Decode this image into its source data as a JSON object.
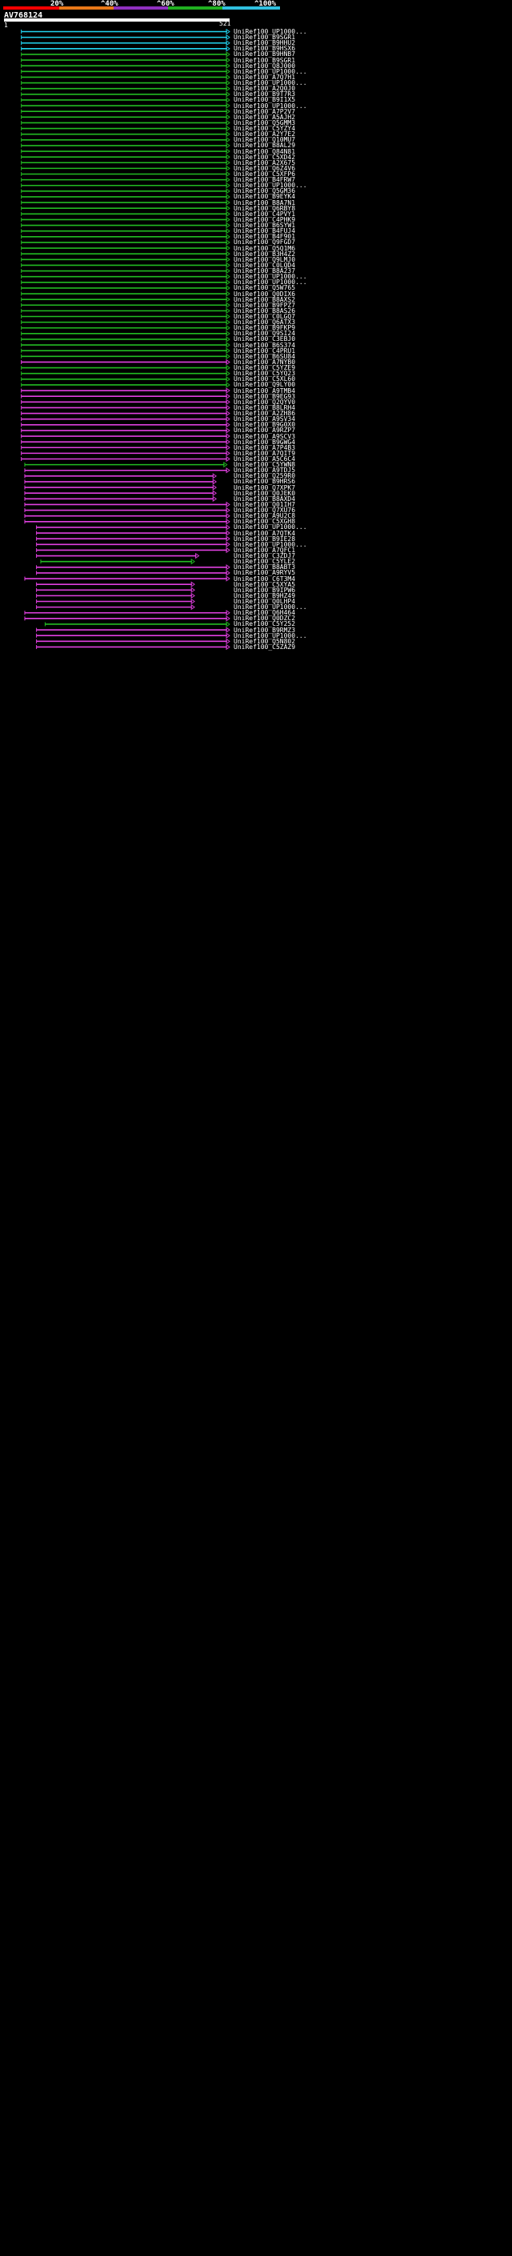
{
  "header": {
    "query_name": "AV768124",
    "scale_labels": [
      "20%",
      "^40%",
      "^60%",
      "^80%",
      "^100%"
    ],
    "scale_colors": [
      "#ff0000",
      "#e87818",
      "#9030c0",
      "#20b020",
      "#30c0e0"
    ],
    "ruler_start": "1",
    "ruler_end": "521"
  },
  "colors": {
    "cyan": "#22d4f0",
    "green": "#22bb22",
    "magenta": "#e040e0",
    "gap_dot": "#ffffff"
  },
  "hits": [
    {
      "id": "UniRef100_UP1000...",
      "color": "cyan",
      "start": 40,
      "end": 521
    },
    {
      "id": "UniRef100_B9SGR1",
      "color": "cyan",
      "start": 40,
      "end": 521
    },
    {
      "id": "UniRef100_B9HHU2",
      "color": "cyan",
      "start": 40,
      "end": 521
    },
    {
      "id": "UniRef100_B9HSX6",
      "color": "cyan",
      "start": 40,
      "end": 521
    },
    {
      "id": "UniRef100_B9HNB7",
      "color": "green",
      "start": 40,
      "end": 521
    },
    {
      "id": "UniRef100_B9SGR1",
      "color": "green",
      "start": 40,
      "end": 521
    },
    {
      "id": "UniRef100_Q8J000",
      "color": "green",
      "start": 40,
      "end": 521
    },
    {
      "id": "UniRef100_UP1000...",
      "color": "green",
      "start": 40,
      "end": 521
    },
    {
      "id": "UniRef100_A7Q7H1",
      "color": "green",
      "start": 40,
      "end": 521
    },
    {
      "id": "UniRef100_UP1000...",
      "color": "green",
      "start": 40,
      "end": 521
    },
    {
      "id": "UniRef100_A2Q0J0",
      "color": "green",
      "start": 40,
      "end": 521
    },
    {
      "id": "UniRef100_B9T7R3",
      "color": "green",
      "start": 40,
      "end": 521
    },
    {
      "id": "UniRef100_B9I1X5",
      "color": "green",
      "start": 40,
      "end": 521
    },
    {
      "id": "UniRef100_UP1000...",
      "color": "green",
      "start": 40,
      "end": 521
    },
    {
      "id": "UniRef100_A7P2V7",
      "color": "green",
      "start": 40,
      "end": 521
    },
    {
      "id": "UniRef100_A5AJH2",
      "color": "green",
      "start": 40,
      "end": 521
    },
    {
      "id": "UniRef100_Q5GMM3",
      "color": "green",
      "start": 40,
      "end": 521
    },
    {
      "id": "UniRef100_C5YZY4",
      "color": "green",
      "start": 40,
      "end": 521
    },
    {
      "id": "UniRef100_A2Y7E2",
      "color": "green",
      "start": 40,
      "end": 521
    },
    {
      "id": "UniRef100_Q10MU7",
      "color": "green",
      "start": 40,
      "end": 521
    },
    {
      "id": "UniRef100_B8AL29",
      "color": "green",
      "start": 40,
      "end": 521
    },
    {
      "id": "UniRef100_Q84N81",
      "color": "green",
      "start": 40,
      "end": 521
    },
    {
      "id": "UniRef100_C5XD42",
      "color": "green",
      "start": 40,
      "end": 521
    },
    {
      "id": "UniRef100_A2X675",
      "color": "green",
      "start": 40,
      "end": 521
    },
    {
      "id": "UniRef100_Q6Z4V6",
      "color": "green",
      "start": 40,
      "end": 521
    },
    {
      "id": "UniRef100_C5XFP6",
      "color": "green",
      "start": 40,
      "end": 521
    },
    {
      "id": "UniRef100_B4FRW7",
      "color": "green",
      "start": 40,
      "end": 521
    },
    {
      "id": "UniRef100_UP1000...",
      "color": "green",
      "start": 40,
      "end": 521
    },
    {
      "id": "UniRef100_Q5GM36",
      "color": "green",
      "start": 40,
      "end": 521
    },
    {
      "id": "UniRef100_B9EYK4",
      "color": "green",
      "start": 40,
      "end": 521
    },
    {
      "id": "UniRef100_B8A7N1",
      "color": "green",
      "start": 40,
      "end": 521
    },
    {
      "id": "UniRef100_Q6RBY8",
      "color": "green",
      "start": 40,
      "end": 521
    },
    {
      "id": "UniRef100_C4PVY1",
      "color": "green",
      "start": 40,
      "end": 521
    },
    {
      "id": "UniRef100_C4PHK9",
      "color": "green",
      "start": 40,
      "end": 521
    },
    {
      "id": "UniRef100_B6SYW1",
      "color": "green",
      "start": 40,
      "end": 521
    },
    {
      "id": "UniRef100_B4FUJ4",
      "color": "green",
      "start": 40,
      "end": 521
    },
    {
      "id": "UniRef100_B4F901",
      "color": "green",
      "start": 40,
      "end": 521
    },
    {
      "id": "UniRef100_Q9FGD7",
      "color": "green",
      "start": 40,
      "end": 521
    },
    {
      "id": "UniRef100_Q5Q1M6",
      "color": "green",
      "start": 40,
      "end": 521
    },
    {
      "id": "UniRef100_B3H4Z2",
      "color": "green",
      "start": 40,
      "end": 521
    },
    {
      "id": "UniRef100_Q9LMJ0",
      "color": "green",
      "start": 40,
      "end": 521
    },
    {
      "id": "UniRef100_C0LQD4",
      "color": "green",
      "start": 40,
      "end": 521
    },
    {
      "id": "UniRef100_B8A237",
      "color": "green",
      "start": 40,
      "end": 521
    },
    {
      "id": "UniRef100_UP1000...",
      "color": "green",
      "start": 40,
      "end": 521
    },
    {
      "id": "UniRef100_UP1000...",
      "color": "green",
      "start": 40,
      "end": 521
    },
    {
      "id": "UniRef100_Q5W765",
      "color": "green",
      "start": 40,
      "end": 521
    },
    {
      "id": "UniRef100_Q0DIX6",
      "color": "green",
      "start": 40,
      "end": 521
    },
    {
      "id": "UniRef100_B8AXS2",
      "color": "green",
      "start": 40,
      "end": 521
    },
    {
      "id": "UniRef100_B9FPZ7",
      "color": "green",
      "start": 40,
      "end": 521
    },
    {
      "id": "UniRef100_B8AS26",
      "color": "green",
      "start": 40,
      "end": 521
    },
    {
      "id": "UniRef100_C0LGQ7",
      "color": "green",
      "start": 40,
      "end": 521
    },
    {
      "id": "UniRef100_Q6ATX3",
      "color": "green",
      "start": 40,
      "end": 521
    },
    {
      "id": "UniRef100_B9FKP9",
      "color": "green",
      "start": 40,
      "end": 521
    },
    {
      "id": "UniRef100_Q9SI24",
      "color": "green",
      "start": 40,
      "end": 521
    },
    {
      "id": "UniRef100_C3EBJ0",
      "color": "green",
      "start": 40,
      "end": 521
    },
    {
      "id": "UniRef100_B6S374",
      "color": "green",
      "start": 40,
      "end": 521
    },
    {
      "id": "UniRef100_C4PRU1",
      "color": "green",
      "start": 40,
      "end": 521
    },
    {
      "id": "UniRef100_B6SU84",
      "color": "green",
      "start": 40,
      "end": 521
    },
    {
      "id": "UniRef100_A7NYB0",
      "color": "magenta",
      "start": 40,
      "end": 521
    },
    {
      "id": "UniRef100_C5YZE9",
      "color": "green",
      "start": 40,
      "end": 521
    },
    {
      "id": "UniRef100_C5YQ23",
      "color": "green",
      "start": 40,
      "end": 521
    },
    {
      "id": "UniRef100_C5XL60",
      "color": "green",
      "start": 40,
      "end": 521
    },
    {
      "id": "UniRef100_Q9LY00",
      "color": "green",
      "start": 40,
      "end": 521
    },
    {
      "id": "UniRef100_A9TMB4",
      "color": "magenta",
      "start": 40,
      "end": 521
    },
    {
      "id": "UniRef100_B9EG93",
      "color": "magenta",
      "start": 40,
      "end": 521
    },
    {
      "id": "UniRef100_Q2QYV0",
      "color": "magenta",
      "start": 40,
      "end": 521
    },
    {
      "id": "UniRef100_B8LRH4",
      "color": "magenta",
      "start": 40,
      "end": 521
    },
    {
      "id": "UniRef100_A2ZH86",
      "color": "magenta",
      "start": 40,
      "end": 521
    },
    {
      "id": "UniRef100_A9SV34",
      "color": "magenta",
      "start": 40,
      "end": 521
    },
    {
      "id": "UniRef100_B9G0X0",
      "color": "magenta",
      "start": 40,
      "end": 521
    },
    {
      "id": "UniRef100_A9RZP7",
      "color": "magenta",
      "start": 40,
      "end": 521
    },
    {
      "id": "UniRef100_A9SCV3",
      "color": "magenta",
      "start": 40,
      "end": 521
    },
    {
      "id": "UniRef100_B9GWG4",
      "color": "magenta",
      "start": 40,
      "end": 521
    },
    {
      "id": "UniRef100_A7P4B3",
      "color": "magenta",
      "start": 40,
      "end": 521
    },
    {
      "id": "UniRef100_A7QIT9",
      "color": "magenta",
      "start": 40,
      "end": 521
    },
    {
      "id": "UniRef100_A5C6C4",
      "color": "magenta",
      "start": 40,
      "end": 521
    },
    {
      "id": "UniRef100_C5YWN8",
      "color": "green",
      "start": 48,
      "end": 515
    },
    {
      "id": "UniRef100_A9TDJ5",
      "color": "magenta",
      "start": 48,
      "end": 521
    },
    {
      "id": "UniRef100_Q259R0",
      "color": "magenta",
      "start": 48,
      "end": 490
    },
    {
      "id": "UniRef100_B9HRS6",
      "color": "magenta",
      "start": 48,
      "end": 490
    },
    {
      "id": "UniRef100_Q7XPK7",
      "color": "magenta",
      "start": 48,
      "end": 490
    },
    {
      "id": "UniRef100_Q0JEK0",
      "color": "magenta",
      "start": 48,
      "end": 490
    },
    {
      "id": "UniRef100_B8AXD4",
      "color": "magenta",
      "start": 48,
      "end": 490
    },
    {
      "id": "UniRef100_Q01IH7",
      "color": "magenta",
      "start": 48,
      "end": 521
    },
    {
      "id": "UniRef100_Q7XU76",
      "color": "magenta",
      "start": 48,
      "end": 521
    },
    {
      "id": "UniRef100_A9U2C8",
      "color": "magenta",
      "start": 48,
      "end": 521
    },
    {
      "id": "UniRef100_C5XGH8",
      "color": "magenta",
      "start": 48,
      "end": 521
    },
    {
      "id": "UniRef100_UP1000...",
      "color": "magenta",
      "start": 75,
      "end": 521
    },
    {
      "id": "UniRef100_A7QTK4",
      "color": "magenta",
      "start": 75,
      "end": 521
    },
    {
      "id": "UniRef100_B9IE28",
      "color": "magenta",
      "start": 75,
      "end": 521
    },
    {
      "id": "UniRef100_UP1000...",
      "color": "magenta",
      "start": 75,
      "end": 521
    },
    {
      "id": "UniRef100_A7QFC1",
      "color": "magenta",
      "start": 75,
      "end": 521
    },
    {
      "id": "UniRef100_C3ZDJ7",
      "color": "magenta",
      "start": 75,
      "end": 450
    },
    {
      "id": "UniRef100_C5YLE2",
      "color": "green",
      "start": 85,
      "end": 440
    },
    {
      "id": "UniRef100_B8ABT3",
      "color": "magenta",
      "start": 75,
      "end": 521
    },
    {
      "id": "UniRef100_A9RYV5",
      "color": "magenta",
      "start": 75,
      "end": 521
    },
    {
      "id": "UniRef100_C6T3M4",
      "color": "magenta",
      "start": 48,
      "end": 521
    },
    {
      "id": "UniRef100_C5XYA5",
      "color": "magenta",
      "start": 75,
      "end": 440
    },
    {
      "id": "UniRef100_B9IPW6",
      "color": "magenta",
      "start": 75,
      "end": 440
    },
    {
      "id": "UniRef100_B9HZ49",
      "color": "magenta",
      "start": 75,
      "end": 440
    },
    {
      "id": "UniRef100_Q0LHP4",
      "color": "magenta",
      "start": 75,
      "end": 440
    },
    {
      "id": "UniRef100_UP1000...",
      "color": "magenta",
      "start": 75,
      "end": 440
    },
    {
      "id": "UniRef100_Q6H464",
      "color": "magenta",
      "start": 48,
      "end": 521
    },
    {
      "id": "UniRef100_Q0DZC2",
      "color": "magenta",
      "start": 48,
      "end": 521
    },
    {
      "id": "UniRef100_C5Y252",
      "color": "green",
      "start": 95,
      "end": 521
    },
    {
      "id": "UniRef100_B9RMZ3",
      "color": "magenta",
      "start": 75,
      "end": 521
    },
    {
      "id": "UniRef100_UP1000...",
      "color": "magenta",
      "start": 75,
      "end": 521
    },
    {
      "id": "UniRef100_Q5N802",
      "color": "magenta",
      "start": 75,
      "end": 521
    },
    {
      "id": "UniRef100_C5ZAZ9",
      "color": "magenta",
      "start": 75,
      "end": 521
    }
  ]
}
